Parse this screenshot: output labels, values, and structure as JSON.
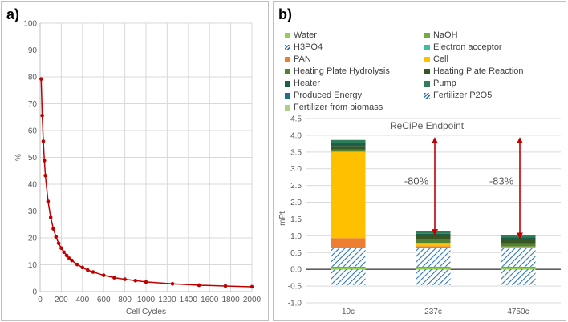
{
  "panel_a": {
    "letter": "a)",
    "chart_data": {
      "type": "line",
      "title": "",
      "xlabel": "Cell Cycles",
      "ylabel": "%",
      "xlim": [
        0,
        2000
      ],
      "ylim": [
        0,
        100
      ],
      "xticks": [
        "0",
        "200",
        "400",
        "600",
        "800",
        "1000",
        "1200",
        "1400",
        "1600",
        "1800",
        "2000"
      ],
      "yticks": [
        "0",
        "10",
        "20",
        "30",
        "40",
        "50",
        "60",
        "70",
        "80",
        "90",
        "100"
      ],
      "grid": true,
      "color": "#c00000",
      "points": [
        {
          "x": 10,
          "y": 79.2
        },
        {
          "x": 20,
          "y": 65.6
        },
        {
          "x": 30,
          "y": 56.0
        },
        {
          "x": 40,
          "y": 48.8
        },
        {
          "x": 50,
          "y": 43.2
        },
        {
          "x": 75,
          "y": 33.6
        },
        {
          "x": 100,
          "y": 27.6
        },
        {
          "x": 125,
          "y": 23.4
        },
        {
          "x": 150,
          "y": 20.4
        },
        {
          "x": 175,
          "y": 18.0
        },
        {
          "x": 200,
          "y": 16.2
        },
        {
          "x": 225,
          "y": 14.7
        },
        {
          "x": 250,
          "y": 13.5
        },
        {
          "x": 275,
          "y": 12.4
        },
        {
          "x": 300,
          "y": 11.6
        },
        {
          "x": 350,
          "y": 10.1
        },
        {
          "x": 400,
          "y": 9.0
        },
        {
          "x": 450,
          "y": 8.0
        },
        {
          "x": 500,
          "y": 7.3
        },
        {
          "x": 600,
          "y": 6.1
        },
        {
          "x": 700,
          "y": 5.2
        },
        {
          "x": 800,
          "y": 4.6
        },
        {
          "x": 900,
          "y": 4.1
        },
        {
          "x": 1000,
          "y": 3.6
        },
        {
          "x": 1250,
          "y": 2.9
        },
        {
          "x": 1500,
          "y": 2.4
        },
        {
          "x": 1750,
          "y": 2.1
        },
        {
          "x": 2000,
          "y": 1.8
        }
      ]
    }
  },
  "panel_b": {
    "letter": "b)",
    "legend": [
      {
        "name": "Water",
        "color": "#92d050",
        "hatch": false
      },
      {
        "name": "NaOH",
        "color": "#70ad47",
        "hatch": false
      },
      {
        "name": "H3PO4",
        "color": "#2e75b6",
        "hatch": true
      },
      {
        "name": "Electron acceptor",
        "color": "#3fbf9f",
        "hatch": false
      },
      {
        "name": "PAN",
        "color": "#ed7d31",
        "hatch": false
      },
      {
        "name": "Cell",
        "color": "#ffc000",
        "hatch": false
      },
      {
        "name": "Heating Plate Hydrolysis",
        "color": "#548235",
        "hatch": false
      },
      {
        "name": "Heating Plate Reaction",
        "color": "#375623",
        "hatch": false
      },
      {
        "name": "Heater",
        "color": "#1e5e48",
        "hatch": false
      },
      {
        "name": "Pump",
        "color": "#2e7d5b",
        "hatch": false
      },
      {
        "name": "Produced Energy",
        "color": "#1f6f8b",
        "hatch": false
      },
      {
        "name": "Fertilizer P2O5",
        "color": "#2e75b6",
        "hatch": true
      },
      {
        "name": "Fertilizer from biomass",
        "color": "#a9d18e",
        "hatch": false
      }
    ],
    "chart_data": {
      "type": "bar",
      "stacked": true,
      "title": "ReCiPe Endpoint",
      "ylabel": "mPt",
      "categories": [
        "10c",
        "237c",
        "4750c"
      ],
      "ylim": [
        -1.0,
        4.5
      ],
      "yticks": [
        "-1.0",
        "-0.5",
        "0.0",
        "0.5",
        "1.0",
        "1.5",
        "2.0",
        "2.5",
        "3.0",
        "3.5",
        "4.0",
        "4.5"
      ],
      "grid": true,
      "series": [
        {
          "name": "Fertilizer P2O5",
          "values": [
            -0.47,
            -0.47,
            -0.47
          ]
        },
        {
          "name": "Water",
          "values": [
            0.03,
            0.03,
            0.03
          ]
        },
        {
          "name": "NaOH",
          "values": [
            0.05,
            0.05,
            0.05
          ]
        },
        {
          "name": "H3PO4",
          "values": [
            0.55,
            0.55,
            0.55
          ]
        },
        {
          "name": "Electron acceptor",
          "values": [
            0.02,
            0.02,
            0.02
          ]
        },
        {
          "name": "PAN",
          "values": [
            0.28,
            0.04,
            0.02
          ]
        },
        {
          "name": "Cell",
          "values": [
            2.58,
            0.1,
            0.01
          ]
        },
        {
          "name": "Heating Plate Hydrolysis",
          "values": [
            0.07,
            0.1,
            0.1
          ]
        },
        {
          "name": "Heating Plate Reaction",
          "values": [
            0.1,
            0.12,
            0.12
          ]
        },
        {
          "name": "Heater",
          "values": [
            0.1,
            0.05,
            0.05
          ]
        },
        {
          "name": "Pump",
          "values": [
            0.08,
            0.08,
            0.08
          ]
        }
      ],
      "annotations": [
        {
          "text": "-80%",
          "category": "237c",
          "arrow_from": 3.85,
          "arrow_to": 1.1
        },
        {
          "text": "-83%",
          "category": "4750c",
          "arrow_from": 3.85,
          "arrow_to": 1.0
        }
      ]
    }
  }
}
